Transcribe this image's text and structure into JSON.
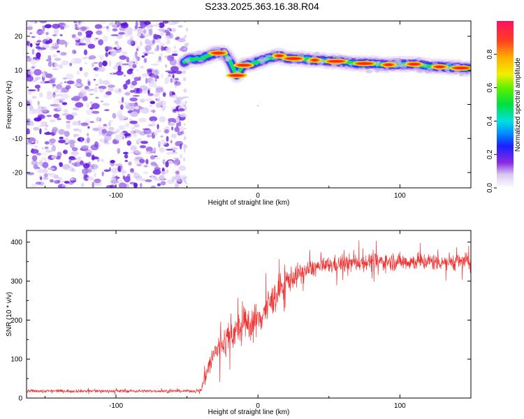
{
  "title": "S233.2025.363.16.38.R04",
  "chart_data": [
    {
      "type": "heatmap",
      "name": "spectrogram",
      "xlabel": "Height of straight line (km)",
      "ylabel": "Frequency (Hz)",
      "xlim": [
        -163,
        150
      ],
      "ylim": [
        -24.5,
        24.5
      ],
      "xticks": [
        -100,
        0,
        100
      ],
      "yticks": [
        -20,
        -10,
        0,
        10,
        20
      ],
      "noise_region_x": [
        -163,
        -52
      ],
      "ridge": {
        "x": [
          -52,
          -48,
          -40,
          -30,
          -24,
          -20,
          -15,
          -10,
          -5,
          0,
          5,
          10,
          15,
          20,
          30,
          40,
          50,
          60,
          70,
          80,
          90,
          100,
          110,
          120,
          130,
          140,
          148
        ],
        "freq": [
          12.5,
          13.2,
          13.5,
          15.0,
          15.2,
          13.0,
          8.5,
          11.5,
          11.8,
          12.5,
          13.2,
          13.8,
          14.3,
          13.5,
          13.4,
          13.0,
          12.8,
          12.5,
          12.0,
          12.0,
          11.6,
          11.8,
          11.8,
          11.2,
          11.0,
          10.8,
          10.5
        ],
        "peaks_x": [
          -28,
          -15,
          -10,
          15,
          25,
          40,
          55,
          75,
          92,
          110,
          128,
          143
        ]
      },
      "colorbar": {
        "label": "Normalized spectral amplitude",
        "range": [
          0.0,
          1.0
        ],
        "ticks": [
          0.0,
          0.2,
          0.4,
          0.6,
          0.8
        ],
        "tick_labels": [
          "0.0",
          "0.2",
          "0.4",
          "0.6",
          "0.8"
        ]
      }
    },
    {
      "type": "line",
      "name": "snr",
      "xlabel": "Height of straight line (km)",
      "ylabel": "SNR (10 * v/v)",
      "xlim": [
        -163,
        150
      ],
      "ylim": [
        0,
        430
      ],
      "xticks": [
        -100,
        0,
        100
      ],
      "yticks": [
        0,
        100,
        200,
        300,
        400
      ],
      "color": "#ee3333",
      "series_envelope": {
        "x": [
          -163,
          -45,
          -40,
          -37,
          -30,
          -20,
          -10,
          0,
          10,
          20,
          30,
          40,
          60,
          80,
          100,
          120,
          140,
          150
        ],
        "mean": [
          18,
          18,
          20,
          60,
          120,
          160,
          185,
          200,
          250,
          300,
          320,
          335,
          345,
          350,
          350,
          350,
          350,
          350
        ],
        "spread": [
          5,
          5,
          6,
          40,
          45,
          55,
          60,
          60,
          55,
          45,
          35,
          30,
          30,
          30,
          30,
          30,
          30,
          30
        ]
      }
    }
  ]
}
